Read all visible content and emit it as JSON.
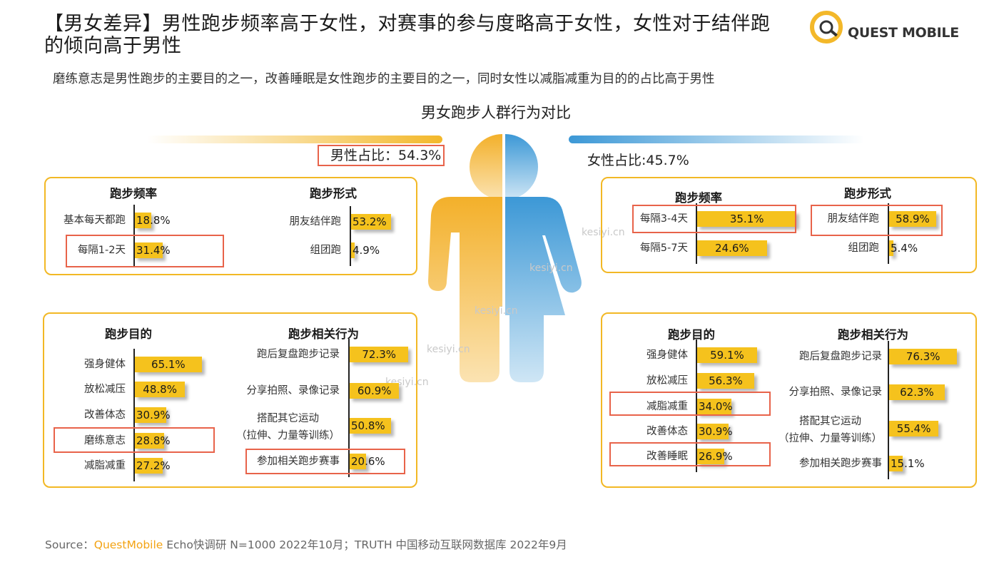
{
  "header": {
    "title": "【男女差异】男性跑步频率高于女性，对赛事的参与度略高于女性，女性对于结伴跑的倾向高于男性",
    "subtitle": "磨练意志是男性跑步的主要目的之一，改善睡眠是女性跑步的主要目的之一，同时女性以减脂减重为目的的占比高于男性",
    "logo_text": "QUEST MOBILE"
  },
  "center_title": "男女跑步人群行为对比",
  "male_share": "男性占比：54.3%",
  "female_share": "女性占比:45.7%",
  "watermark": "kesiyi.cn",
  "source": {
    "prefix": "Source：",
    "brand": "QuestMobile",
    "rest": " Echo快调研 N=1000 2022年10月；TRUTH 中国移动互联网数据库 2022年9月"
  },
  "colors": {
    "bar": "#f5c21d",
    "highlight": "#e8634a",
    "box_border": "#f2b825",
    "male": "#f3b82a",
    "female": "#3c98d6"
  },
  "chart_data": [
    {
      "type": "bar",
      "group": "male",
      "title": "跑步频率",
      "categories": [
        "基本每天都跑",
        "每隔1-2天"
      ],
      "values": [
        18.8,
        31.4
      ],
      "labels": [
        "18.8%",
        "31.4%"
      ],
      "highlighted": [
        "每隔1-2天"
      ]
    },
    {
      "type": "bar",
      "group": "male",
      "title": "跑步形式",
      "categories": [
        "朋友结伴跑",
        "组团跑"
      ],
      "values": [
        53.2,
        4.9
      ],
      "labels": [
        "53.2%",
        "4.9%"
      ],
      "highlighted": []
    },
    {
      "type": "bar",
      "group": "male",
      "title": "跑步目的",
      "categories": [
        "强身健体",
        "放松减压",
        "改善体态",
        "磨练意志",
        "减脂减重"
      ],
      "values": [
        65.1,
        48.8,
        30.9,
        28.8,
        27.2
      ],
      "labels": [
        "65.1%",
        "48.8%",
        "30.9%",
        "28.8%",
        "27.2%"
      ],
      "highlighted": [
        "磨练意志"
      ]
    },
    {
      "type": "bar",
      "group": "male",
      "title": "跑步相关行为",
      "categories": [
        "跑后复盘跑步记录",
        "分享拍照、录像记录",
        "搭配其它运动\n（拉伸、力量等训练）",
        "参加相关跑步赛事"
      ],
      "values": [
        72.3,
        60.9,
        50.8,
        20.6
      ],
      "labels": [
        "72.3%",
        "60.9%",
        "50.8%",
        "20.6%"
      ],
      "highlighted": [
        "参加相关跑步赛事"
      ]
    },
    {
      "type": "bar",
      "group": "female",
      "title": "跑步频率",
      "categories": [
        "每隔3-4天",
        "每隔5-7天"
      ],
      "values": [
        35.1,
        24.6
      ],
      "labels": [
        "35.1%",
        "24.6%"
      ],
      "highlighted": [
        "每隔3-4天"
      ]
    },
    {
      "type": "bar",
      "group": "female",
      "title": "跑步形式",
      "categories": [
        "朋友结伴跑",
        "组团跑"
      ],
      "values": [
        58.9,
        5.4
      ],
      "labels": [
        "58.9%",
        "5.4%"
      ],
      "highlighted": [
        "朋友结伴跑"
      ]
    },
    {
      "type": "bar",
      "group": "female",
      "title": "跑步目的",
      "categories": [
        "强身健体",
        "放松减压",
        "减脂减重",
        "改善体态",
        "改善睡眠"
      ],
      "values": [
        59.1,
        56.3,
        34.0,
        30.9,
        26.9
      ],
      "labels": [
        "59.1%",
        "56.3%",
        "34.0%",
        "30.9%",
        "26.9%"
      ],
      "highlighted": [
        "减脂减重",
        "改善睡眠"
      ]
    },
    {
      "type": "bar",
      "group": "female",
      "title": "跑步相关行为",
      "categories": [
        "跑后复盘跑步记录",
        "分享拍照、录像记录",
        "搭配其它运动\n（拉伸、力量等训练）",
        "参加相关跑步赛事"
      ],
      "values": [
        76.3,
        62.3,
        55.4,
        15.1
      ],
      "labels": [
        "76.3%",
        "62.3%",
        "55.4%",
        "15.1%"
      ],
      "highlighted": []
    }
  ]
}
